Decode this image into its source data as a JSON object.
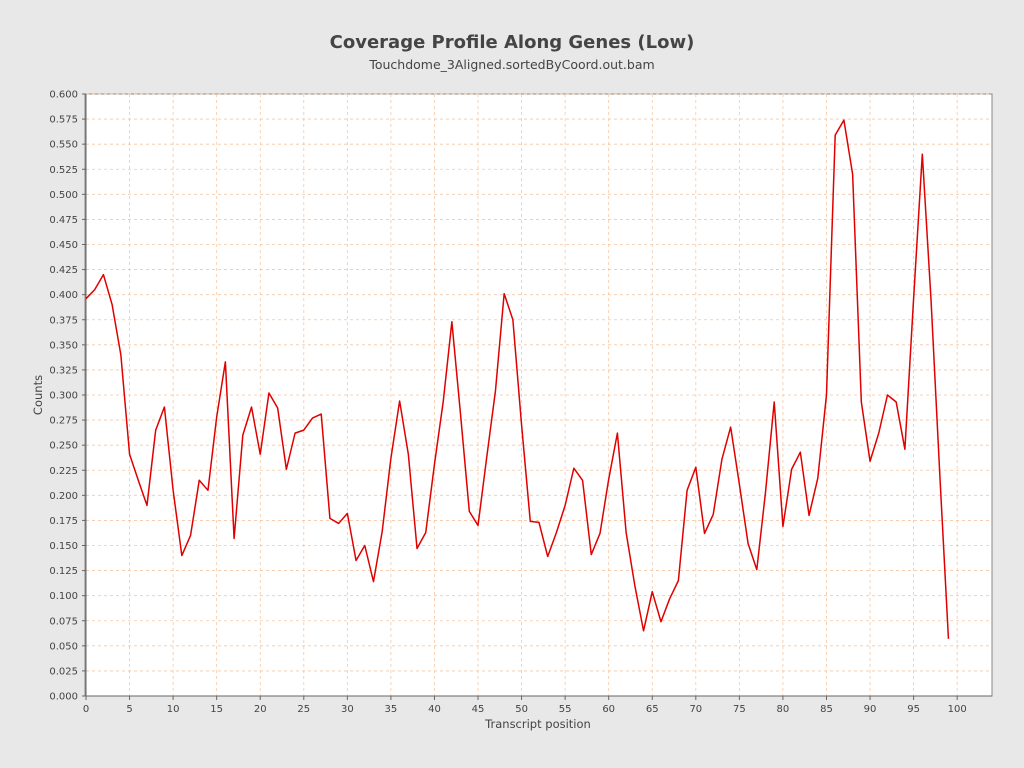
{
  "chart_data": {
    "type": "line",
    "title": "Coverage Profile Along Genes (Low)",
    "subtitle": "Touchdome_3Aligned.sortedByCoord.out.bam",
    "xlabel": "Transcript position",
    "ylabel": "Counts",
    "xlim": [
      0,
      104
    ],
    "ylim": [
      0,
      0.6
    ],
    "x_ticks": [
      0,
      5,
      10,
      15,
      20,
      25,
      30,
      35,
      40,
      45,
      50,
      55,
      60,
      65,
      70,
      75,
      80,
      85,
      90,
      95,
      100
    ],
    "x_tick_labels": [
      "0",
      "5",
      "10",
      "15",
      "20",
      "25",
      "30",
      "35",
      "40",
      "45",
      "50",
      "55",
      "60",
      "65",
      "70",
      "75",
      "80",
      "85",
      "90",
      "95",
      "100"
    ],
    "y_ticks": [
      0,
      0.025,
      0.05,
      0.075,
      0.1,
      0.125,
      0.15,
      0.175,
      0.2,
      0.225,
      0.25,
      0.275,
      0.3,
      0.325,
      0.35,
      0.375,
      0.4,
      0.425,
      0.45,
      0.475,
      0.5,
      0.525,
      0.55,
      0.575,
      0.6
    ],
    "y_tick_labels": [
      "0.000",
      "0.025",
      "0.050",
      "0.075",
      "0.100",
      "0.125",
      "0.150",
      "0.175",
      "0.200",
      "0.225",
      "0.250",
      "0.275",
      "0.300",
      "0.325",
      "0.350",
      "0.375",
      "0.400",
      "0.425",
      "0.450",
      "0.475",
      "0.500",
      "0.525",
      "0.550",
      "0.575",
      "0.600"
    ],
    "grid": true,
    "colors": {
      "line": "#e00000",
      "grid": "#f2c8a8",
      "plot_bg": "#ffffff",
      "page_bg": "#e8e8e8",
      "axis": "#888888"
    },
    "series": [
      {
        "x": [
          0,
          1,
          2,
          3,
          4,
          5,
          6,
          7,
          8,
          9,
          10,
          11,
          12,
          13,
          14,
          15,
          16,
          17,
          18,
          19,
          20,
          21,
          22,
          23,
          24,
          25,
          26,
          27,
          28,
          29,
          30,
          31,
          32,
          33,
          34,
          35,
          36,
          37,
          38,
          39,
          40,
          41,
          42,
          43,
          44,
          45,
          46,
          47,
          48,
          49,
          50,
          51,
          52,
          53,
          54,
          55,
          56,
          57,
          58,
          59,
          60,
          61,
          62,
          63,
          64,
          65,
          66,
          67,
          68,
          69,
          70,
          71,
          72,
          73,
          74,
          75,
          76,
          77,
          78,
          79,
          80,
          81,
          82,
          83,
          84,
          85,
          86,
          87,
          88,
          89,
          90,
          91,
          92,
          93,
          94,
          95,
          96,
          97,
          98,
          99
        ],
        "values": [
          0.396,
          0.405,
          0.42,
          0.39,
          0.34,
          0.241,
          0.215,
          0.19,
          0.265,
          0.288,
          0.205,
          0.14,
          0.16,
          0.215,
          0.205,
          0.278,
          0.333,
          0.157,
          0.26,
          0.288,
          0.241,
          0.302,
          0.287,
          0.226,
          0.262,
          0.265,
          0.277,
          0.281,
          0.177,
          0.172,
          0.182,
          0.135,
          0.15,
          0.114,
          0.164,
          0.237,
          0.294,
          0.241,
          0.147,
          0.163,
          0.231,
          0.293,
          0.373,
          0.28,
          0.184,
          0.17,
          0.238,
          0.304,
          0.401,
          0.375,
          0.27,
          0.174,
          0.173,
          0.139,
          0.163,
          0.19,
          0.227,
          0.215,
          0.141,
          0.162,
          0.216,
          0.262,
          0.163,
          0.11,
          0.065,
          0.104,
          0.074,
          0.097,
          0.115,
          0.205,
          0.228,
          0.162,
          0.181,
          0.236,
          0.268,
          0.211,
          0.152,
          0.126,
          0.203,
          0.293,
          0.169,
          0.226,
          0.243,
          0.18,
          0.217,
          0.3,
          0.559,
          0.574,
          0.52,
          0.293,
          0.234,
          0.262,
          0.3,
          0.293,
          0.246,
          0.396,
          0.54,
          0.395,
          0.222,
          0.057
        ]
      }
    ]
  }
}
